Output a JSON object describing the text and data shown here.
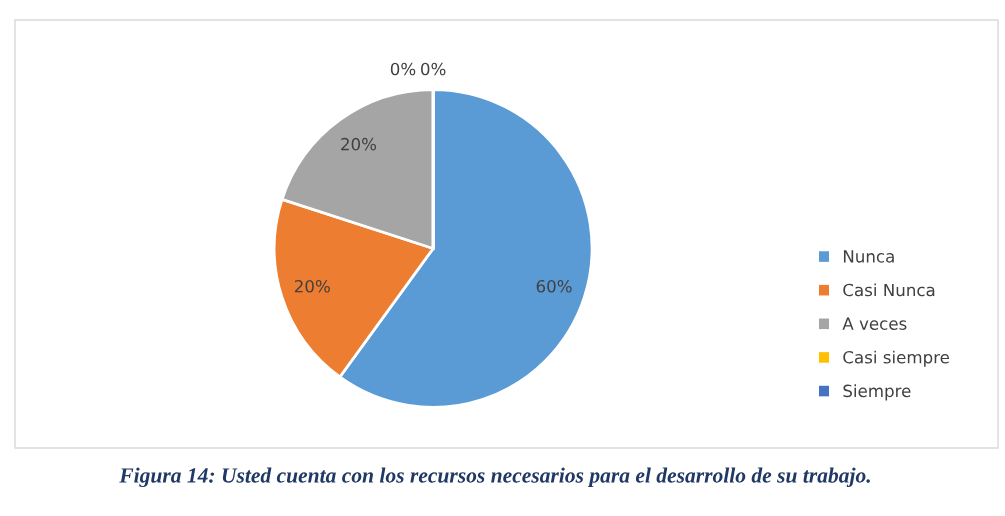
{
  "chart_data": {
    "type": "pie",
    "title": "Figura 14: Usted cuenta con los recursos necesarios para el desarrollo de su trabajo.",
    "categories": [
      "Nunca",
      "Casi Nunca",
      "A veces",
      "Casi siempre",
      "Siempre"
    ],
    "values": [
      60,
      20,
      20,
      0,
      0
    ],
    "colors": [
      "#5b9bd5",
      "#ed7d31",
      "#a5a5a5",
      "#ffc000",
      "#4472c4"
    ],
    "value_labels": [
      "60%",
      "20%",
      "20%",
      "0%",
      "0%"
    ],
    "legend": "right"
  }
}
